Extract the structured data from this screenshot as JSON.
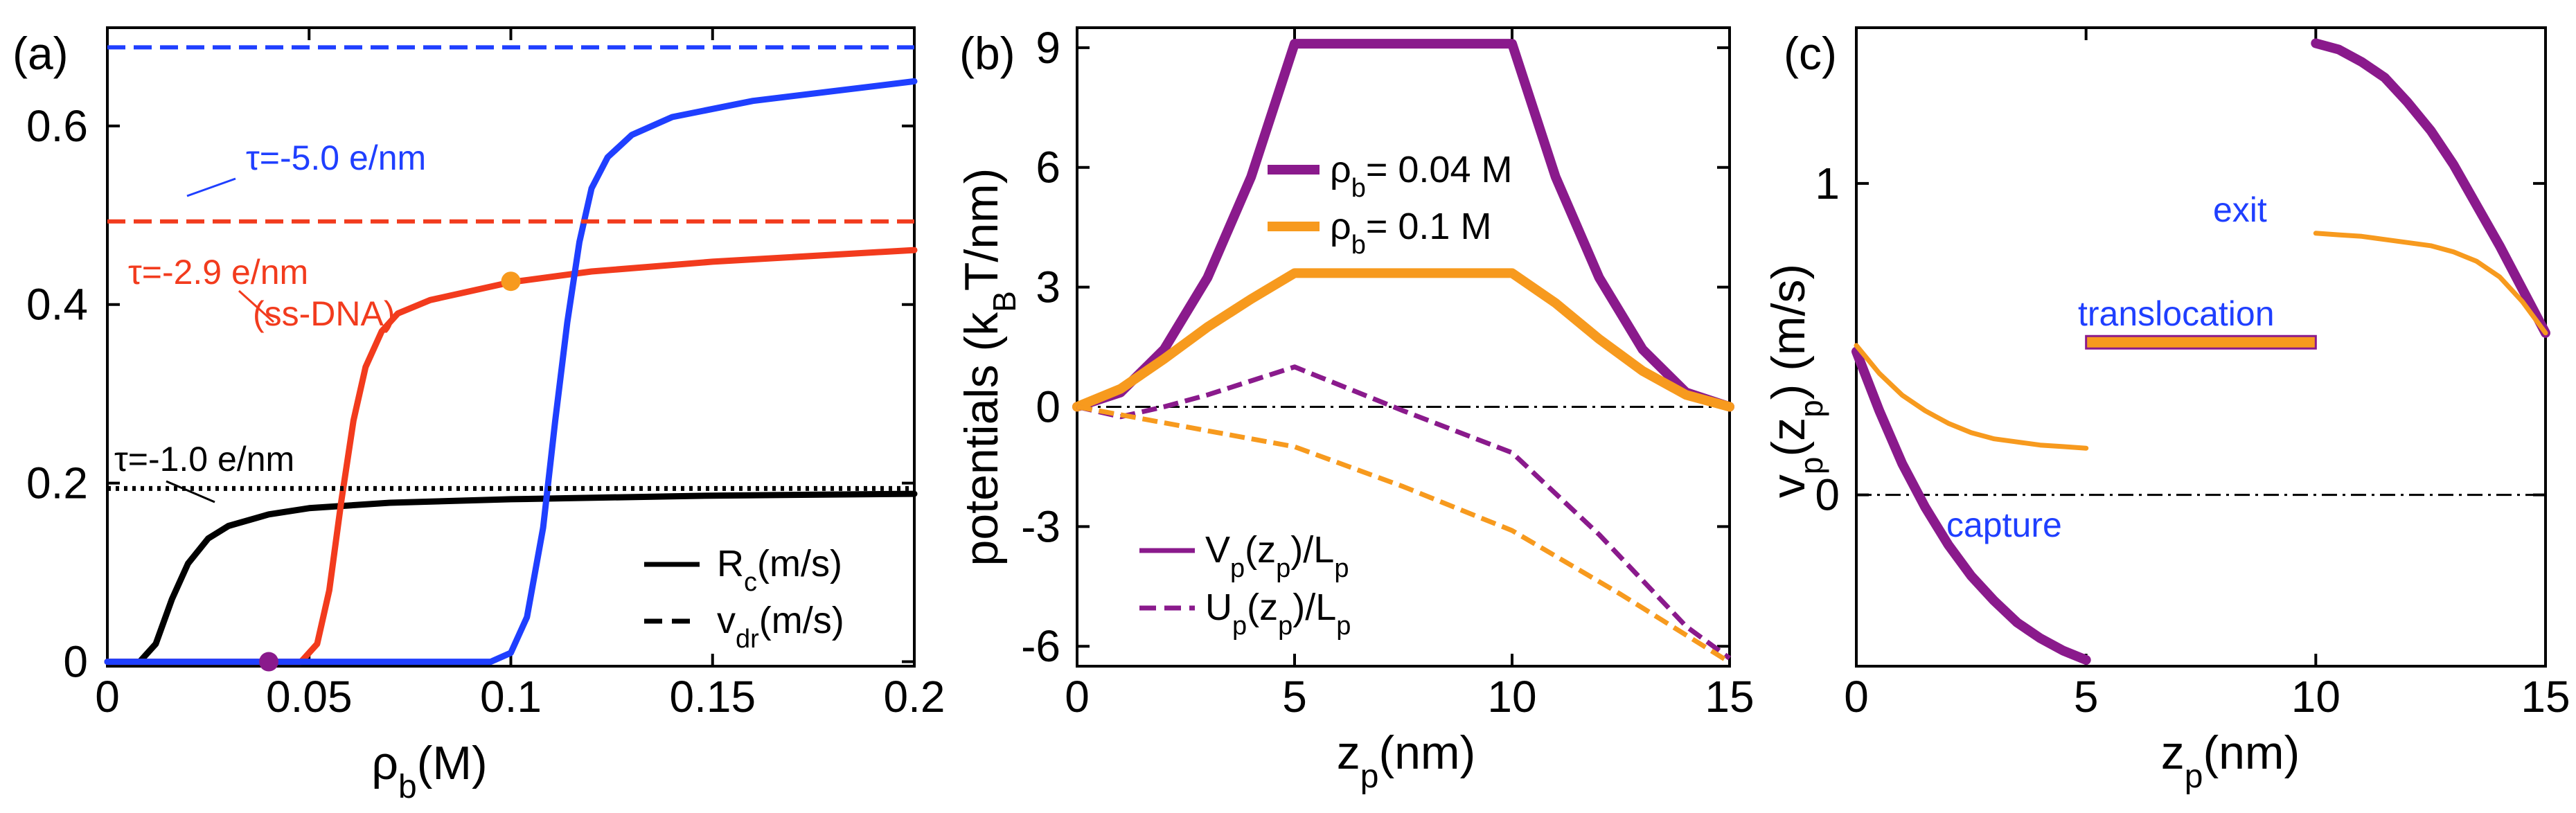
{
  "colors": {
    "purple": "#8a1a8c",
    "orange": "#f79a1e",
    "red": "#f23b1d",
    "blue": "#1f3fff",
    "black": "#000000",
    "text_blue": "#1f3fff",
    "text_red": "#f23b1d"
  },
  "chart_data": [
    {
      "panel_label": "(a)",
      "type": "line",
      "xlabel": "ρb(M)",
      "xlabel_main": "ρ",
      "xlabel_sub": "b",
      "xlabel_unit": "(M)",
      "xlim": [
        0,
        0.2
      ],
      "ylim": [
        -0.005,
        0.71
      ],
      "xticks": [
        0,
        0.05,
        0.1,
        0.15,
        0.2
      ],
      "xtick_labels": [
        "0",
        "0.05",
        "0.1",
        "0.15",
        "0.2"
      ],
      "yticks": [
        0,
        0.2,
        0.4,
        0.6
      ],
      "ytick_labels": [
        "0",
        "0.2",
        "0.4",
        "0.6"
      ],
      "series": [
        {
          "name": "R_c tau=-1.0",
          "style": "solid",
          "color": "black",
          "x": [
            0,
            0.008,
            0.012,
            0.016,
            0.02,
            0.025,
            0.03,
            0.04,
            0.05,
            0.07,
            0.1,
            0.15,
            0.2
          ],
          "y": [
            0,
            0,
            0.02,
            0.07,
            0.11,
            0.138,
            0.152,
            0.165,
            0.172,
            0.178,
            0.182,
            0.186,
            0.188
          ]
        },
        {
          "name": "R_c tau=-2.9",
          "style": "solid",
          "color": "red",
          "x": [
            0,
            0.048,
            0.052,
            0.055,
            0.058,
            0.061,
            0.064,
            0.068,
            0.072,
            0.08,
            0.09,
            0.1,
            0.12,
            0.15,
            0.2
          ],
          "y": [
            0,
            0,
            0.02,
            0.08,
            0.18,
            0.27,
            0.33,
            0.37,
            0.39,
            0.405,
            0.415,
            0.425,
            0.437,
            0.448,
            0.461
          ]
        },
        {
          "name": "R_c tau=-5.0",
          "style": "solid",
          "color": "blue",
          "x": [
            0,
            0.095,
            0.1,
            0.104,
            0.108,
            0.111,
            0.114,
            0.117,
            0.12,
            0.124,
            0.13,
            0.14,
            0.16,
            0.2
          ],
          "y": [
            0,
            0,
            0.01,
            0.05,
            0.15,
            0.27,
            0.38,
            0.47,
            0.53,
            0.565,
            0.59,
            0.61,
            0.628,
            0.65
          ]
        },
        {
          "name": "v_dr tau=-1.0",
          "style": "dotted",
          "color": "black",
          "x": [
            0,
            0.2
          ],
          "y": [
            0.194,
            0.194
          ]
        },
        {
          "name": "v_dr tau=-2.9",
          "style": "dashed",
          "color": "red",
          "x": [
            0,
            0.2
          ],
          "y": [
            0.493,
            0.493
          ]
        },
        {
          "name": "v_dr tau=-5.0",
          "style": "dashed",
          "color": "blue",
          "x": [
            0,
            0.2
          ],
          "y": [
            0.688,
            0.688
          ]
        }
      ],
      "points": [
        {
          "x": 0.04,
          "y": 0,
          "color": "purple"
        },
        {
          "x": 0.1,
          "y": 0.426,
          "color": "orange"
        }
      ],
      "annotations": [
        {
          "text": "τ=-5.0 e/nm",
          "color": "blue"
        },
        {
          "text": "τ=-2.9 e/nm",
          "color": "red"
        },
        {
          "text": "(ss-DNA)",
          "color": "red"
        },
        {
          "text": "τ=-1.0 e/nm",
          "color": "black"
        }
      ],
      "legend": [
        {
          "main": "R",
          "sub": "c",
          "unit": "(m/s)",
          "style": "solid"
        },
        {
          "main": "v",
          "sub": "dr",
          "unit": "(m/s)",
          "style": "dashed"
        }
      ],
      "legend_position": "bottom-right"
    },
    {
      "panel_label": "(b)",
      "type": "line",
      "xlabel": "zp(nm)",
      "xlabel_main": "z",
      "xlabel_sub": "p",
      "xlabel_unit": "(nm)",
      "ylabel": "potentials (kBT/nm)",
      "ylabel_pre": "potentials (k",
      "ylabel_sub": "B",
      "ylabel_post": "T/nm)",
      "xlim": [
        0,
        15
      ],
      "ylim": [
        -6.5,
        9.5
      ],
      "xticks": [
        0,
        5,
        10,
        15
      ],
      "xtick_labels": [
        "0",
        "5",
        "10",
        "15"
      ],
      "yticks": [
        -6,
        -3,
        0,
        3,
        6,
        9
      ],
      "ytick_labels": [
        "-6",
        "-3",
        "0",
        "3",
        "6",
        "9"
      ],
      "series": [
        {
          "name": "V_p rho=0.04",
          "style": "solid",
          "color": "purple",
          "x": [
            0,
            1,
            2,
            3,
            4,
            5,
            10,
            11,
            12,
            13,
            14,
            15
          ],
          "y": [
            0,
            0.36,
            1.44,
            3.24,
            5.76,
            9.1,
            9.1,
            5.76,
            3.24,
            1.44,
            0.36,
            0
          ]
        },
        {
          "name": "V_p rho=0.1",
          "style": "solid",
          "color": "orange",
          "x": [
            0,
            1,
            2,
            3,
            4,
            5,
            10,
            11,
            12,
            13,
            14,
            15
          ],
          "y": [
            0,
            0.45,
            1.2,
            2.0,
            2.7,
            3.35,
            3.35,
            2.6,
            1.7,
            0.9,
            0.3,
            0
          ]
        },
        {
          "name": "U_p rho=0.04",
          "style": "dashed",
          "color": "purple",
          "x": [
            0,
            1,
            2,
            3,
            4,
            5,
            7.5,
            10,
            12,
            14,
            15
          ],
          "y": [
            0,
            -0.25,
            0,
            0.3,
            0.65,
            1.0,
            -0.1,
            -1.15,
            -3.2,
            -5.5,
            -6.3
          ]
        },
        {
          "name": "U_p rho=0.1",
          "style": "dashed",
          "color": "orange",
          "x": [
            0,
            2.5,
            5,
            7.5,
            10,
            12.5,
            15
          ],
          "y": [
            0,
            -0.5,
            -1.0,
            -2.0,
            -3.1,
            -4.7,
            -6.4
          ]
        }
      ],
      "hline": 0,
      "legend_top": [
        {
          "main": "ρ",
          "sub": "b",
          "post": "= 0.04 M",
          "color": "purple"
        },
        {
          "main": "ρ",
          "sub": "b",
          "post": "= 0.1 M",
          "color": "orange"
        }
      ],
      "legend_bottom": [
        {
          "main": "V",
          "sub": "p",
          "mid": "(z",
          "sub2": "p",
          "post": ")/L",
          "sub3": "p",
          "style": "solid"
        },
        {
          "main": "U",
          "sub": "p",
          "mid": "(z",
          "sub2": "p",
          "post": ")/L",
          "sub3": "p",
          "style": "dashed"
        }
      ]
    },
    {
      "panel_label": "(c)",
      "type": "line",
      "xlabel": "zp(nm)",
      "xlabel_main": "z",
      "xlabel_sub": "p",
      "xlabel_unit": "(nm)",
      "ylabel": "vp(zp) (m/s)",
      "ylabel_pre": "v",
      "ylabel_sub": "p",
      "ylabel_mid": "(z",
      "ylabel_sub2": "p",
      "ylabel_post": ") (m/s)",
      "xlim": [
        0,
        15
      ],
      "ylim": [
        -0.55,
        1.5
      ],
      "xticks": [
        0,
        5,
        10,
        15
      ],
      "xtick_labels": [
        "0",
        "5",
        "10",
        "15"
      ],
      "yticks": [
        0,
        1
      ],
      "ytick_labels": [
        "0",
        "1"
      ],
      "series": [
        {
          "name": "capture rho=0.04",
          "style": "solid",
          "color": "purple",
          "x": [
            0,
            0.5,
            1,
            1.5,
            2,
            2.5,
            3,
            3.5,
            4,
            4.5,
            5
          ],
          "y": [
            0.46,
            0.27,
            0.1,
            -0.04,
            -0.16,
            -0.26,
            -0.34,
            -0.41,
            -0.46,
            -0.5,
            -0.53
          ]
        },
        {
          "name": "capture rho=0.1",
          "style": "solid",
          "color": "orange",
          "x": [
            0,
            0.5,
            1,
            1.5,
            2,
            2.5,
            3,
            3.5,
            4,
            4.5,
            5
          ],
          "y": [
            0.48,
            0.39,
            0.32,
            0.27,
            0.23,
            0.2,
            0.18,
            0.17,
            0.16,
            0.155,
            0.15
          ]
        },
        {
          "name": "translocation",
          "style": "bar",
          "color": "orange",
          "x": [
            5,
            10
          ],
          "y": [
            0.49,
            0.49
          ]
        },
        {
          "name": "exit rho=0.04",
          "style": "solid",
          "color": "purple",
          "x": [
            10,
            10.5,
            11,
            11.5,
            12,
            12.5,
            13,
            13.5,
            14,
            14.5,
            15
          ],
          "y": [
            1.45,
            1.43,
            1.39,
            1.34,
            1.26,
            1.17,
            1.06,
            0.93,
            0.8,
            0.66,
            0.52
          ]
        },
        {
          "name": "exit rho=0.1",
          "style": "solid",
          "color": "orange",
          "x": [
            10,
            10.5,
            11,
            11.5,
            12,
            12.5,
            13,
            13.5,
            14,
            14.5,
            15
          ],
          "y": [
            0.84,
            0.835,
            0.83,
            0.82,
            0.81,
            0.8,
            0.78,
            0.75,
            0.7,
            0.62,
            0.52
          ]
        }
      ],
      "hline": 0,
      "annotations": [
        {
          "text": "exit",
          "color": "blue"
        },
        {
          "text": "translocation",
          "color": "blue"
        },
        {
          "text": "capture",
          "color": "blue"
        }
      ]
    }
  ]
}
